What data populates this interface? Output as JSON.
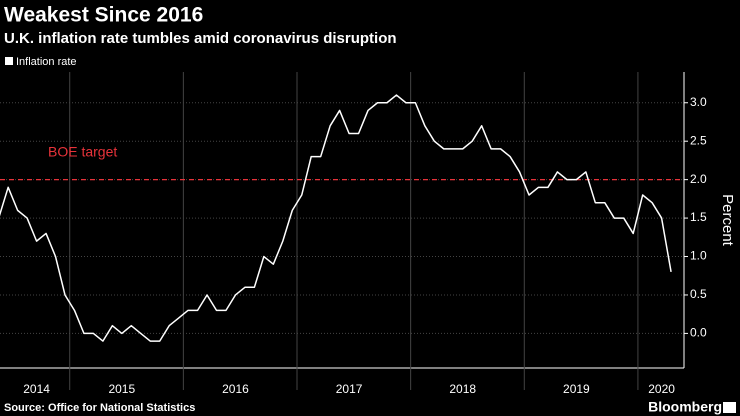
{
  "chart_data": {
    "type": "line",
    "title": "Weakest Since 2016",
    "subtitle": "U.K. inflation rate tumbles amid coronavirus disruption",
    "y_label": "Percent",
    "source": "Source: Office for National Statistics",
    "brand": "Bloomberg",
    "reference_line": {
      "value": 2.0,
      "label": "BOE target",
      "color": "#e8333a"
    },
    "categories": [
      null,
      null,
      null,
      null,
      "2014",
      null,
      null,
      null,
      null,
      null,
      null,
      null,
      null,
      "2015",
      null,
      null,
      null,
      null,
      null,
      null,
      null,
      null,
      null,
      null,
      null,
      "2016",
      null,
      null,
      null,
      null,
      null,
      null,
      null,
      null,
      null,
      null,
      null,
      "2017",
      null,
      null,
      null,
      null,
      null,
      null,
      null,
      null,
      null,
      null,
      null,
      "2018",
      null,
      null,
      null,
      null,
      null,
      null,
      null,
      null,
      null,
      null,
      null,
      "2019",
      null,
      null,
      null,
      null,
      null,
      null,
      null,
      null,
      "2020",
      null
    ],
    "series": [
      {
        "name": "Inflation rate",
        "color": "#ffffff",
        "values": [
          1.5,
          1.9,
          1.6,
          1.5,
          1.2,
          1.3,
          1.0,
          0.5,
          0.3,
          0.0,
          0.0,
          -0.1,
          0.1,
          0.0,
          0.1,
          0.0,
          -0.1,
          -0.1,
          0.1,
          0.2,
          0.3,
          0.3,
          0.5,
          0.3,
          0.3,
          0.5,
          0.6,
          0.6,
          1.0,
          0.9,
          1.2,
          1.6,
          1.8,
          2.3,
          2.3,
          2.7,
          2.9,
          2.6,
          2.6,
          2.9,
          3.0,
          3.0,
          3.1,
          3.0,
          3.0,
          2.7,
          2.5,
          2.4,
          2.4,
          2.4,
          2.5,
          2.7,
          2.4,
          2.4,
          2.3,
          2.1,
          1.8,
          1.9,
          1.9,
          2.1,
          2.0,
          2.0,
          2.1,
          1.7,
          1.7,
          1.5,
          1.5,
          1.3,
          1.8,
          1.7,
          1.5,
          0.8
        ]
      }
    ],
    "ylim": [
      -0.45,
      3.4
    ],
    "yticks": [
      {
        "value": 0,
        "label": "0.0"
      },
      {
        "value": 0.5,
        "label": "0.5"
      },
      {
        "value": 1,
        "label": "1.0"
      },
      {
        "value": 1.5,
        "label": "1.5"
      },
      {
        "value": 2,
        "label": "2.0"
      },
      {
        "value": 2.5,
        "label": "2.5"
      },
      {
        "value": 3,
        "label": "3.0"
      }
    ],
    "grid": true
  }
}
